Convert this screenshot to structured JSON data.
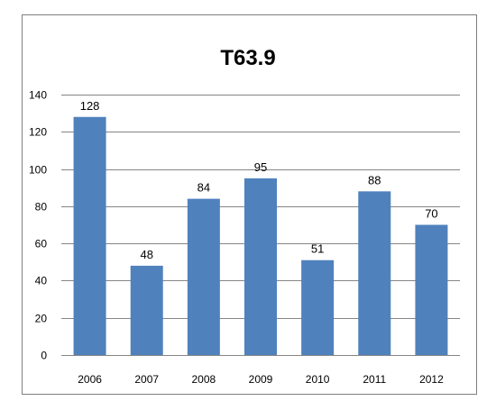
{
  "chart_data": {
    "type": "bar",
    "title": "T63.9",
    "categories": [
      "2006",
      "2007",
      "2008",
      "2009",
      "2010",
      "2011",
      "2012"
    ],
    "values": [
      128,
      48,
      84,
      95,
      51,
      88,
      70
    ],
    "yticks": [
      "0",
      "20",
      "40",
      "60",
      "80",
      "100",
      "120",
      "140"
    ],
    "ylim": [
      0,
      140
    ],
    "xlabel": "",
    "ylabel": "",
    "grid": true,
    "legend": false,
    "bar_color": "#4F81BD",
    "grid_color": "#868686"
  }
}
